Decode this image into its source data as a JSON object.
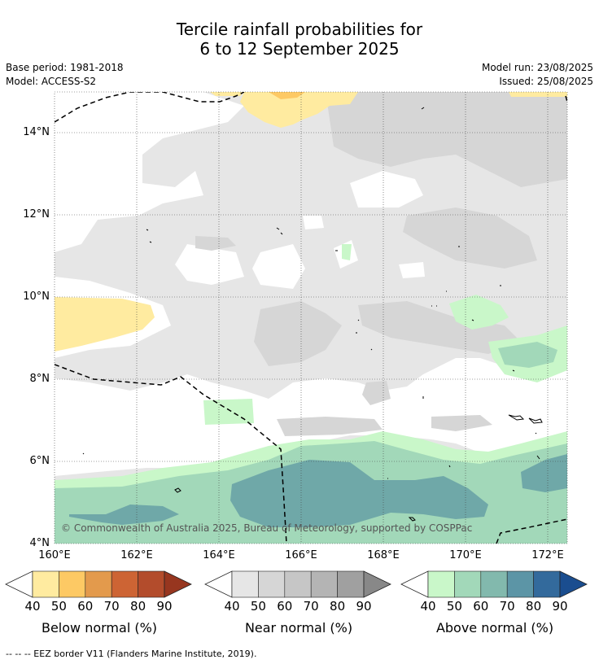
{
  "title": {
    "line1": "Tercile rainfall probabilities for",
    "line2": "6 to 12 September 2025"
  },
  "meta": {
    "base_period": "Base period: 1981-2018",
    "model": "Model: ACCESS-S2",
    "model_run": "Model run: 23/08/2025",
    "issued": "Issued: 25/08/2025"
  },
  "map": {
    "lat_labels": [
      "14°N",
      "12°N",
      "10°N",
      "8°N",
      "6°N",
      "4°N"
    ],
    "lon_labels": [
      "160°E",
      "162°E",
      "164°E",
      "166°E",
      "168°E",
      "170°E",
      "172°E"
    ],
    "copyright": "© Commonwealth of Australia 2025, Bureau of Meteorology, supported by COSPPac"
  },
  "colorbars": [
    {
      "name": "below",
      "label": "Below normal (%)",
      "ticks": [
        "40",
        "50",
        "60",
        "70",
        "80",
        "90"
      ],
      "colors": [
        "#ffeba0",
        "#fdc964",
        "#e39a4c",
        "#cd6434",
        "#b34c2c",
        "#97361f"
      ],
      "low_color": "#ffffff"
    },
    {
      "name": "near",
      "label": "Near normal (%)",
      "ticks": [
        "40",
        "50",
        "60",
        "70",
        "80",
        "90"
      ],
      "colors": [
        "#e6e6e6",
        "#d6d6d6",
        "#c6c6c6",
        "#b4b4b4",
        "#a0a0a0",
        "#888888"
      ],
      "low_color": "#ffffff"
    },
    {
      "name": "above",
      "label": "Above normal (%)",
      "ticks": [
        "40",
        "50",
        "60",
        "70",
        "80",
        "90"
      ],
      "colors": [
        "#c9f7c9",
        "#a2d8b9",
        "#82b9ad",
        "#5c95a6",
        "#336a9c",
        "#1a4d8f"
      ],
      "low_color": "#ffffff"
    }
  ],
  "footer": "-- -- -- EEZ border V11 (Flanders Marine Institute, 2019)."
}
